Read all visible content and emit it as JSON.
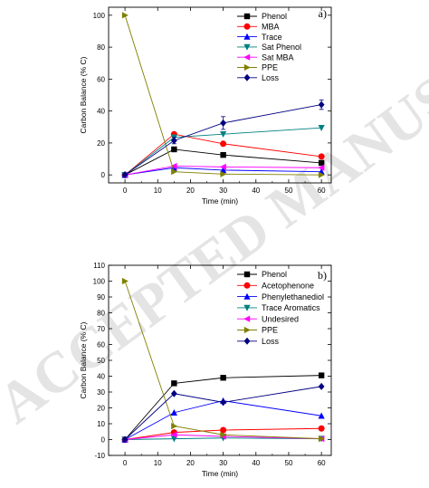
{
  "watermark": "ACCEPTED MANUSCRIPT",
  "chart_data": [
    {
      "type": "line",
      "panel_label": "a)",
      "xlabel": "Time (min)",
      "ylabel": "Carbon Balance (% C)",
      "xlim": [
        -5,
        63
      ],
      "ylim": [
        -5,
        105
      ],
      "xticks": [
        0,
        10,
        20,
        30,
        40,
        50,
        60
      ],
      "yticks": [
        0,
        20,
        40,
        60,
        80,
        100
      ],
      "grid": false,
      "legend_position": "top-right",
      "x": [
        0,
        15,
        30,
        60
      ],
      "series": [
        {
          "name": "Phenol",
          "color": "#000000",
          "marker": "square",
          "values": [
            0,
            16,
            12.5,
            7.5
          ]
        },
        {
          "name": "MBA",
          "color": "#ff0000",
          "marker": "circle",
          "values": [
            0,
            25.5,
            19.5,
            11.5
          ]
        },
        {
          "name": "Trace",
          "color": "#0000ff",
          "marker": "triangle-up",
          "values": [
            0,
            4.5,
            3,
            2
          ]
        },
        {
          "name": "Sat Phenol",
          "color": "#008080",
          "marker": "triangle-down",
          "values": [
            0,
            23.5,
            25.5,
            29.5
          ]
        },
        {
          "name": "Sat MBA",
          "color": "#ff00ff",
          "marker": "triangle-left",
          "values": [
            0,
            5.5,
            5,
            4.5
          ]
        },
        {
          "name": "PPE",
          "color": "#808000",
          "marker": "triangle-right",
          "values": [
            100,
            2,
            0.5,
            0
          ]
        },
        {
          "name": "Loss",
          "color": "#000080",
          "marker": "diamond",
          "values": [
            0,
            21.5,
            32.5,
            44
          ],
          "errors": [
            0,
            2,
            4,
            3
          ]
        }
      ]
    },
    {
      "type": "line",
      "panel_label": "b)",
      "xlabel": "Time (min)",
      "ylabel": "Carbon Balance (% C)",
      "xlim": [
        -5,
        63
      ],
      "ylim": [
        -10,
        110
      ],
      "xticks": [
        0,
        10,
        20,
        30,
        40,
        50,
        60
      ],
      "yticks": [
        -10,
        0,
        10,
        20,
        30,
        40,
        50,
        60,
        70,
        80,
        90,
        100,
        110
      ],
      "grid": false,
      "legend_position": "top-right",
      "x": [
        0,
        15,
        30,
        60
      ],
      "series": [
        {
          "name": "Phenol",
          "color": "#000000",
          "marker": "square",
          "values": [
            0,
            35.5,
            39,
            40.5
          ]
        },
        {
          "name": "Acetophenone",
          "color": "#ff0000",
          "marker": "circle",
          "values": [
            0,
            4.5,
            6,
            7
          ]
        },
        {
          "name": "Phenylethanediol",
          "color": "#0000ff",
          "marker": "triangle-up",
          "values": [
            0,
            17,
            24.5,
            15
          ]
        },
        {
          "name": "Trace Aromatics",
          "color": "#008080",
          "marker": "triangle-down",
          "values": [
            0,
            0.5,
            1,
            0.5
          ]
        },
        {
          "name": "Undesired",
          "color": "#ff00ff",
          "marker": "triangle-left",
          "values": [
            0,
            3,
            2,
            0.5
          ]
        },
        {
          "name": "PPE",
          "color": "#808000",
          "marker": "triangle-right",
          "values": [
            100,
            8.5,
            3,
            0.5
          ]
        },
        {
          "name": "Loss",
          "color": "#000080",
          "marker": "diamond",
          "values": [
            0,
            29,
            23.5,
            33.5
          ]
        }
      ]
    }
  ]
}
